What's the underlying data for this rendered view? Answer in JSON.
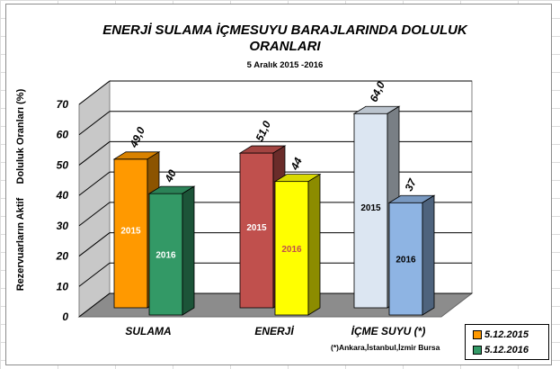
{
  "chart_data": {
    "type": "bar",
    "title_line1": "ENERJİ SULAMA İÇMESUYU BARAJLARINDA DOLULUK",
    "title_line2": "ORANLARI",
    "subtitle": "5 Aralık 2015 -2016",
    "ylabel": "Rezervuarların Aktif     Doluluk Oranları (%)",
    "ylim": [
      0,
      70
    ],
    "yticks": [
      0,
      10,
      20,
      30,
      40,
      50,
      60,
      70
    ],
    "categories": [
      "SULAMA",
      "ENERJİ",
      "İÇME SUYU (*)"
    ],
    "series": [
      {
        "name": "5.12.2015",
        "values": [
          49.0,
          51.0,
          64.0
        ],
        "value_labels": [
          "49,0",
          "51,0",
          "64,0"
        ],
        "bar_text": "2015",
        "colors": [
          "#FF9900",
          "#C0504D",
          "#DCE6F2"
        ],
        "bar_text_colors": [
          "#ffffff",
          "#ffffff",
          "#000000"
        ]
      },
      {
        "name": "5.12.2016",
        "values": [
          40,
          44,
          37
        ],
        "value_labels": [
          "40",
          "44",
          "37"
        ],
        "bar_text": "2016",
        "colors": [
          "#339966",
          "#FFFF00",
          "#8EB4E3"
        ],
        "bar_text_colors": [
          "#ffffff",
          "#C0504D",
          "#000000"
        ]
      }
    ],
    "legend_colors": [
      "#FF9900",
      "#339966"
    ],
    "legend": "bottom-right",
    "grid": true,
    "footnote": "(*)Ankara,İstanbul,İzmir Bursa"
  }
}
